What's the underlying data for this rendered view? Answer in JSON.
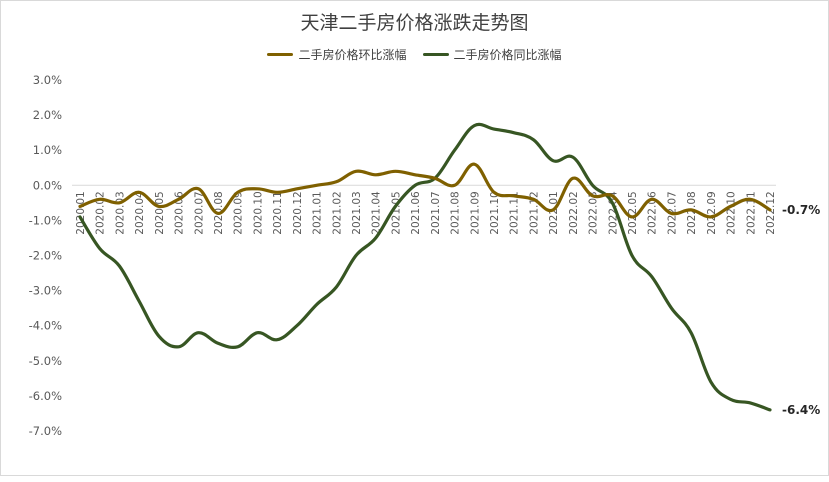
{
  "chart_data": {
    "type": "line",
    "title": "天津二手房价格涨跌走势图",
    "xlabel": "",
    "ylabel": "",
    "ylim": [
      -7,
      3
    ],
    "yticks": [
      "3.0%",
      "2.0%",
      "1.0%",
      "0.0%",
      "-1.0%",
      "-2.0%",
      "-3.0%",
      "-4.0%",
      "-5.0%",
      "-6.0%",
      "-7.0%"
    ],
    "categories": [
      "2020.01",
      "2020.02",
      "2020.03",
      "2020.04",
      "2020.05",
      "2020.06",
      "2020.07",
      "2020.08",
      "2020.09",
      "2020.10",
      "2020.11",
      "2020.12",
      "2021.01",
      "2021.02",
      "2021.03",
      "2021.04",
      "2021.05",
      "2021.06",
      "2021.07",
      "2021.08",
      "2021.09",
      "2021.10",
      "2021.11",
      "2021.12",
      "2022.01",
      "2022.02",
      "2022.03",
      "2022.04",
      "2022.05",
      "2022.06",
      "2022.07",
      "2022.08",
      "2022.09",
      "2022.10",
      "2022.11",
      "2022.12"
    ],
    "series": [
      {
        "name": "二手房价格环比涨幅",
        "color": "#7f6000",
        "values": [
          -0.6,
          -0.4,
          -0.5,
          -0.2,
          -0.6,
          -0.4,
          -0.1,
          -0.8,
          -0.2,
          -0.1,
          -0.2,
          -0.1,
          0.0,
          0.1,
          0.4,
          0.3,
          0.4,
          0.3,
          0.2,
          0.0,
          0.6,
          -0.2,
          -0.3,
          -0.4,
          -0.7,
          0.2,
          -0.3,
          -0.3,
          -0.9,
          -0.4,
          -0.8,
          -0.7,
          -0.9,
          -0.6,
          -0.4,
          -0.7
        ],
        "end_label": "-0.7%"
      },
      {
        "name": "二手房价格同比涨幅",
        "color": "#375623",
        "values": [
          -0.9,
          -1.8,
          -2.3,
          -3.3,
          -4.3,
          -4.6,
          -4.2,
          -4.5,
          -4.6,
          -4.2,
          -4.4,
          -4.0,
          -3.4,
          -2.9,
          -2.0,
          -1.5,
          -0.6,
          0.0,
          0.2,
          1.0,
          1.7,
          1.6,
          1.5,
          1.3,
          0.7,
          0.8,
          0.0,
          -0.5,
          -2.0,
          -2.6,
          -3.5,
          -4.2,
          -5.6,
          -6.1,
          -6.2,
          -6.4
        ],
        "end_label": "-6.4%"
      }
    ],
    "legend": "top"
  }
}
